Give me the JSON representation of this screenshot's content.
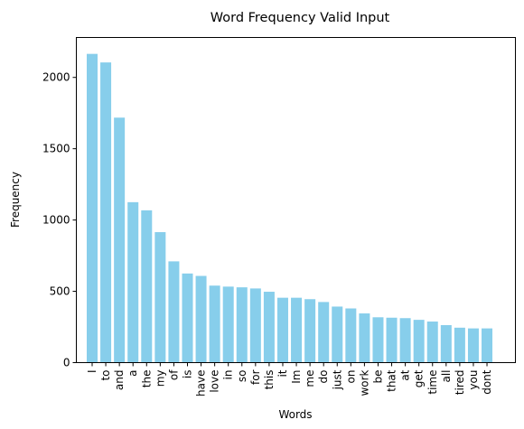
{
  "chart_data": {
    "type": "bar",
    "title": "Word Frequency Valid Input",
    "xlabel": "Words",
    "ylabel": "Frequency",
    "categories": [
      "I",
      "to",
      "and",
      "a",
      "the",
      "my",
      "of",
      "is",
      "have",
      "love",
      "in",
      "so",
      "for",
      "this",
      "it",
      "Im",
      "me",
      "do",
      "just",
      "on",
      "work",
      "be",
      "that",
      "at",
      "get",
      "time",
      "all",
      "tired",
      "you",
      "dont"
    ],
    "values": [
      2165,
      2105,
      1718,
      1125,
      1068,
      915,
      710,
      625,
      608,
      540,
      533,
      528,
      520,
      497,
      455,
      455,
      445,
      425,
      393,
      380,
      345,
      318,
      315,
      312,
      300,
      288,
      263,
      245,
      240,
      240
    ],
    "ylim": [
      0,
      2280
    ],
    "yticks": [
      0,
      500,
      1000,
      1500,
      2000
    ],
    "bar_color": "#87ceeb",
    "grid": false,
    "legend": "none"
  }
}
